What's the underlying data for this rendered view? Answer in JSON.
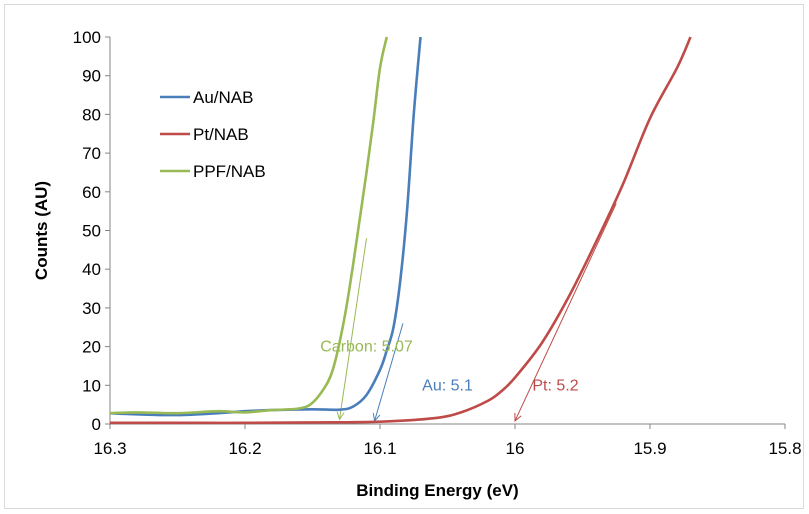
{
  "chart_data": {
    "type": "line",
    "xlabel": "Binding Energy (eV)",
    "ylabel": "Counts (AU)",
    "xlim": [
      16.3,
      15.8
    ],
    "x_reversed": true,
    "ylim": [
      0,
      100
    ],
    "x_ticks": [
      "16.3",
      "16.2",
      "16.1",
      "16",
      "15.9",
      "15.8"
    ],
    "y_ticks": [
      "0",
      "10",
      "20",
      "30",
      "40",
      "50",
      "60",
      "70",
      "80",
      "90",
      "100"
    ],
    "grid": false,
    "legend_position": "top-left",
    "series": [
      {
        "name": "Au/NAB",
        "color": "#4a7ebb",
        "x": [
          16.3,
          16.28,
          16.25,
          16.22,
          16.2,
          16.18,
          16.15,
          16.13,
          16.12,
          16.11,
          16.1,
          16.095,
          16.09,
          16.085,
          16.08,
          16.075,
          16.07
        ],
        "y": [
          2.8,
          2.5,
          2.3,
          2.8,
          3.3,
          3.6,
          3.8,
          3.7,
          4.5,
          7.5,
          14,
          19,
          25,
          37,
          55,
          80,
          100
        ]
      },
      {
        "name": "Pt/NAB",
        "color": "#be4b48",
        "x": [
          16.3,
          16.25,
          16.2,
          16.15,
          16.1,
          16.06,
          16.04,
          16.02,
          16.01,
          16.0,
          15.98,
          15.96,
          15.94,
          15.92,
          15.9,
          15.88,
          15.87
        ],
        "y": [
          0.3,
          0.3,
          0.3,
          0.4,
          0.6,
          1.5,
          3.0,
          6.0,
          8.5,
          12,
          21,
          33,
          47,
          62,
          79,
          92,
          100
        ]
      },
      {
        "name": "PPF/NAB",
        "color": "#98b954",
        "x": [
          16.3,
          16.28,
          16.25,
          16.22,
          16.2,
          16.18,
          16.16,
          16.15,
          16.14,
          16.135,
          16.13,
          16.125,
          16.12,
          16.115,
          16.11,
          16.105,
          16.1,
          16.095
        ],
        "y": [
          2.8,
          3.0,
          2.8,
          3.3,
          3.0,
          3.6,
          4.0,
          5.5,
          10,
          14,
          21,
          30,
          41,
          53,
          65,
          78,
          92,
          100
        ]
      }
    ],
    "tangent_lines": [
      {
        "color": "#4a7ebb",
        "from": [
          16.083,
          26
        ],
        "to": [
          16.104,
          0.8
        ]
      },
      {
        "color": "#98b954",
        "from": [
          16.11,
          48
        ],
        "to": [
          16.13,
          1.2
        ]
      },
      {
        "color": "#be4b48",
        "from": [
          15.925,
          57
        ],
        "to": [
          16.0,
          0.8
        ]
      }
    ],
    "annotations": [
      {
        "text": "Carbon: 5.07",
        "color": "#98b954",
        "x": 16.11,
        "y": 20
      },
      {
        "text": "Au: 5.1",
        "color": "#4a7ebb",
        "x": 16.05,
        "y": 10
      },
      {
        "text": "Pt: 5.2",
        "color": "#be4b48",
        "x": 15.97,
        "y": 10
      }
    ]
  }
}
